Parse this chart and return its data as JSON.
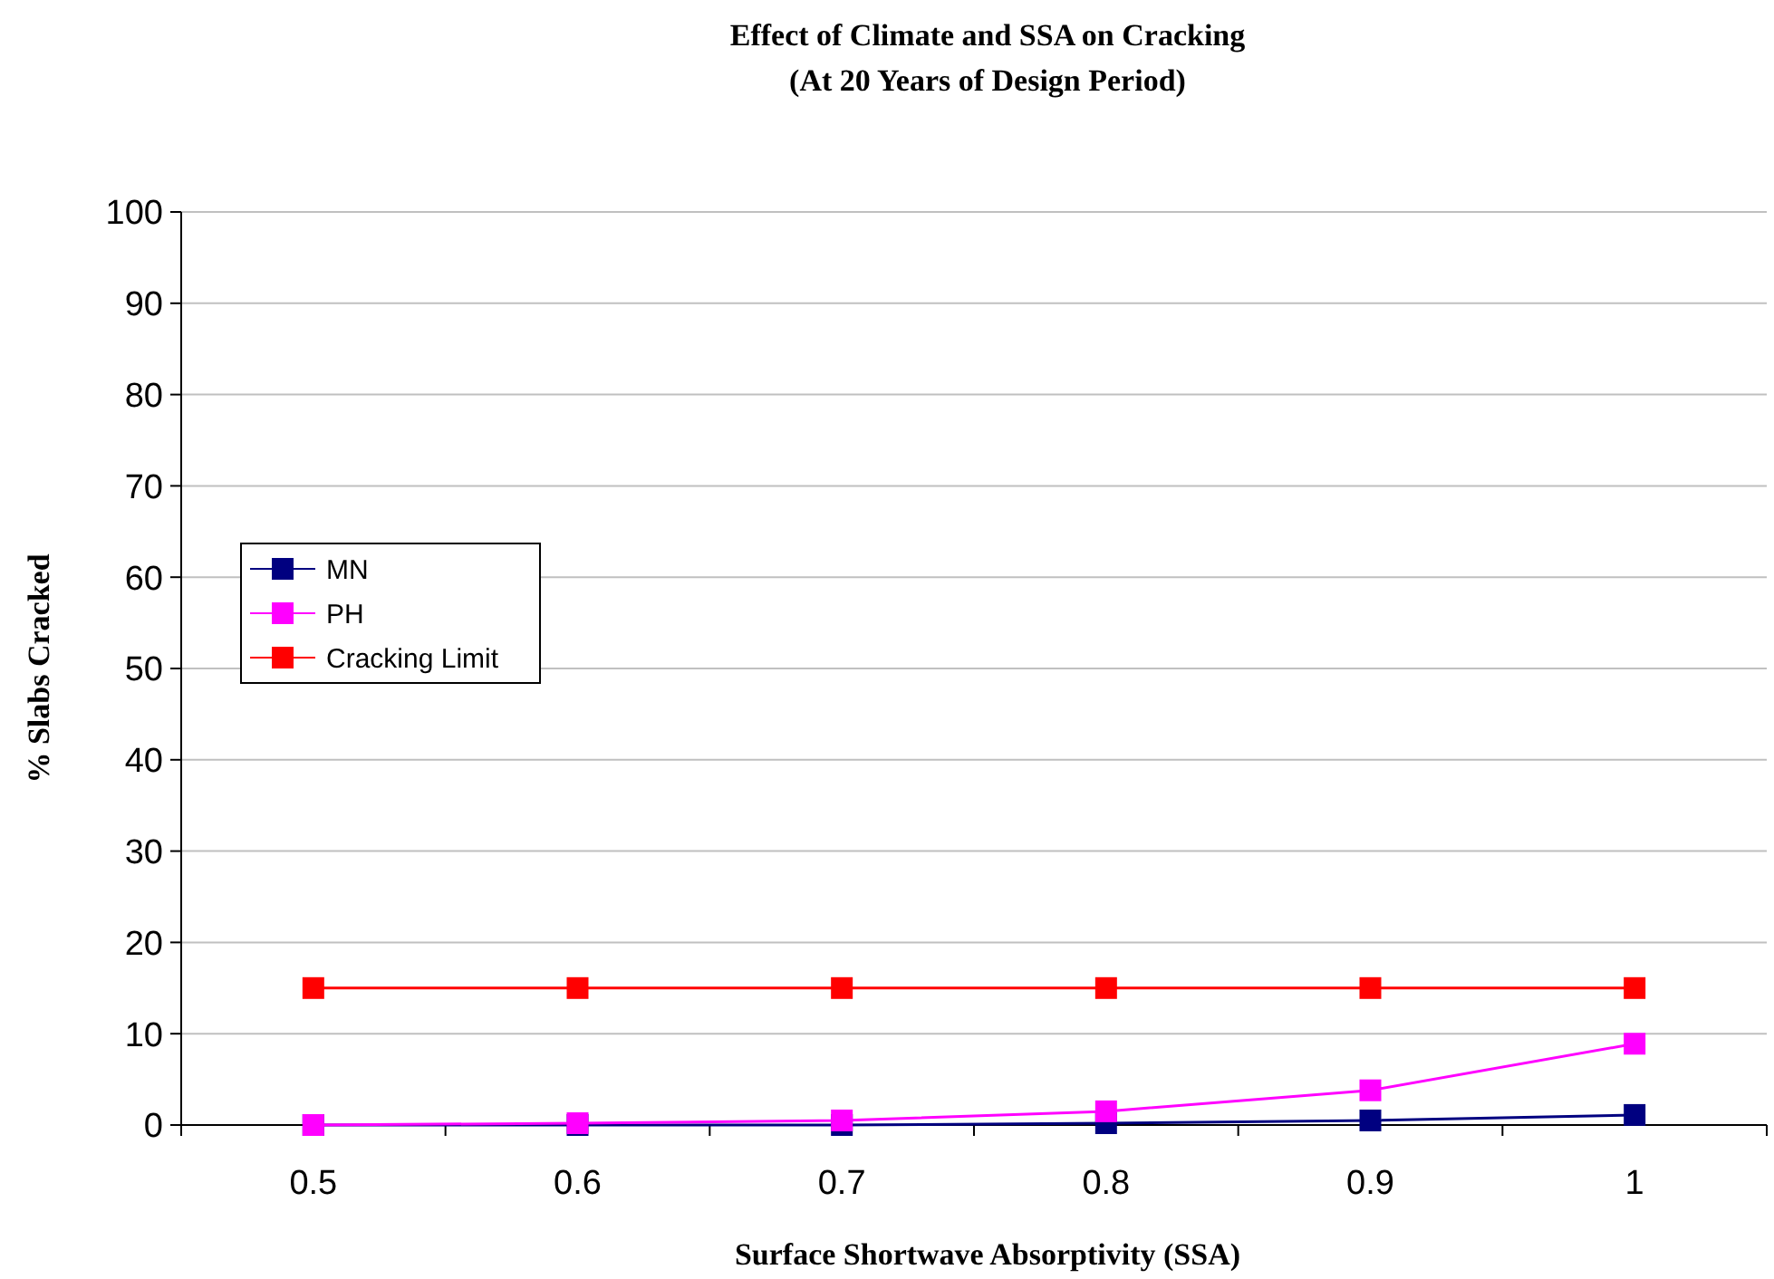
{
  "chart_data": {
    "type": "line",
    "title": "Effect of Climate and SSA on Cracking",
    "subtitle": "(At 20 Years of Design Period)",
    "xlabel": "Surface Shortwave Absorptivity (SSA)",
    "ylabel": "% Slabs Cracked",
    "categories": [
      "0.5",
      "0.6",
      "0.7",
      "0.8",
      "0.9",
      "1"
    ],
    "series": [
      {
        "name": "MN",
        "color": "#000080",
        "values": [
          0,
          0,
          0,
          0.2,
          0.5,
          1.1
        ]
      },
      {
        "name": "PH",
        "color": "#ff00ff",
        "values": [
          0,
          0.2,
          0.5,
          1.5,
          3.8,
          8.9
        ]
      },
      {
        "name": "Cracking Limit",
        "color": "#ff0000",
        "values": [
          15,
          15,
          15,
          15,
          15,
          15
        ]
      }
    ],
    "ylim": [
      0,
      100
    ],
    "yticks": [
      0,
      10,
      20,
      30,
      40,
      50,
      60,
      70,
      80,
      90,
      100
    ],
    "grid": "y",
    "legend": "left",
    "marker": "square",
    "line_style": "solid"
  }
}
